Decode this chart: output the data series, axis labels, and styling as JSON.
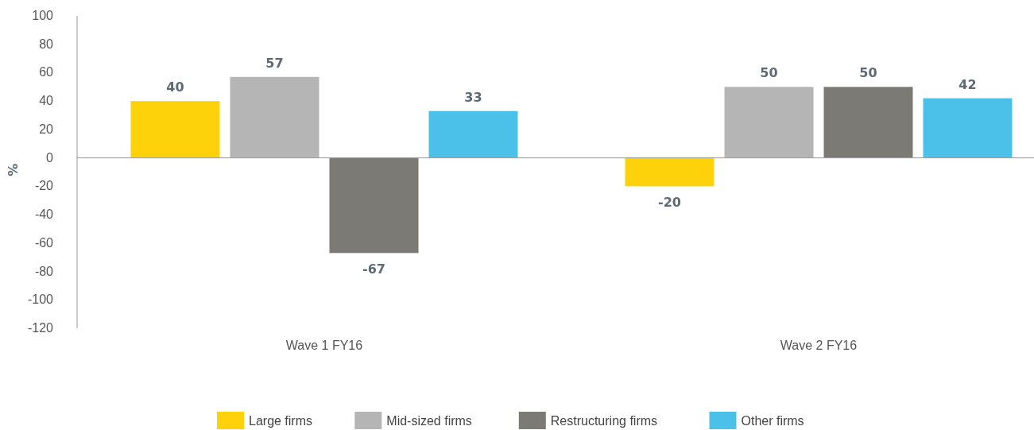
{
  "chart_data": {
    "type": "bar",
    "ylabel": "%",
    "categories": [
      "Wave 1 FY16",
      "Wave 2 FY16"
    ],
    "series": [
      {
        "name": "Large firms",
        "color": "#fdd20a",
        "values": [
          40,
          -20
        ]
      },
      {
        "name": "Mid-sized firms",
        "color": "#b5b5b5",
        "values": [
          57,
          50
        ]
      },
      {
        "name": "Restructuring firms",
        "color": "#7b7a74",
        "values": [
          -67,
          50
        ]
      },
      {
        "name": "Other firms",
        "color": "#4bc0e8",
        "values": [
          33,
          42
        ]
      }
    ],
    "ylim": [
      -120,
      100
    ],
    "yticks": [
      -120,
      -100,
      -80,
      -60,
      -40,
      -20,
      0,
      20,
      40,
      60,
      80,
      100
    ],
    "ref_lines": [
      {
        "axis": "y",
        "value": 0,
        "color": "#999999"
      }
    ],
    "legend": "bottom",
    "data_labels": true
  }
}
